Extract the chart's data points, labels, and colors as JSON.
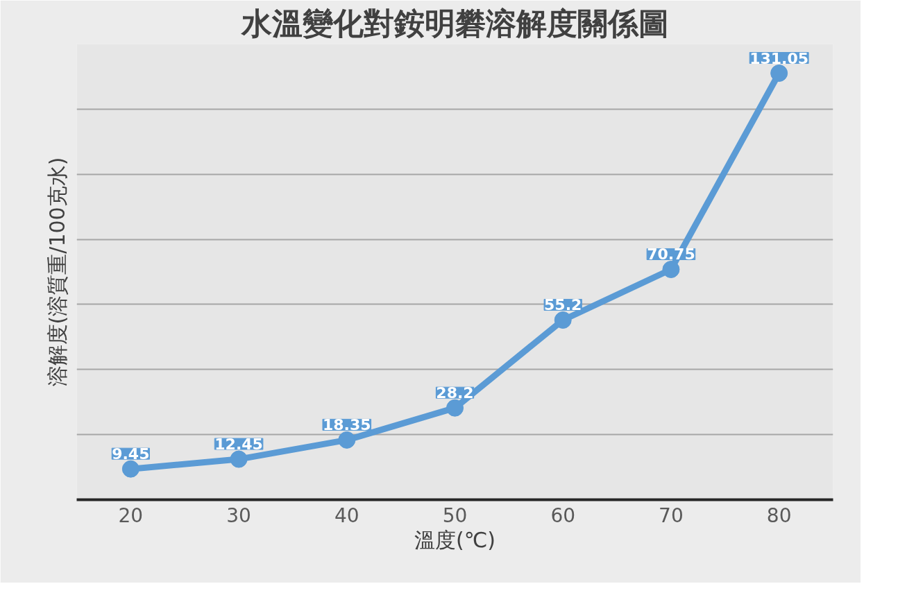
{
  "chart_data": {
    "type": "line",
    "title": "水溫變化對銨明礬溶解度關係圖",
    "xlabel": "溫度(℃)",
    "ylabel": "溶解度(溶質重/100克水)",
    "categories": [
      "20",
      "30",
      "40",
      "50",
      "60",
      "70",
      "80"
    ],
    "series": [
      {
        "color": "#5b9bd5",
        "values": [
          9.45,
          12.45,
          18.35,
          28.2,
          55.2,
          70.75,
          131.05
        ]
      }
    ],
    "ylim": [
      0,
      140
    ],
    "yticks": [
      {
        "value": 0,
        "label": null
      },
      {
        "value": 20,
        "label": null
      },
      {
        "value": 40,
        "label": null
      },
      {
        "value": 60,
        "label": null
      },
      {
        "value": 80,
        "label": null
      },
      {
        "value": 100,
        "label": null
      },
      {
        "value": 120,
        "label": null
      },
      {
        "value": 140,
        "label": null
      }
    ],
    "tick_labels": "x",
    "grid": "y",
    "marker": "circle",
    "line_style": "solid",
    "data_labels": true
  }
}
